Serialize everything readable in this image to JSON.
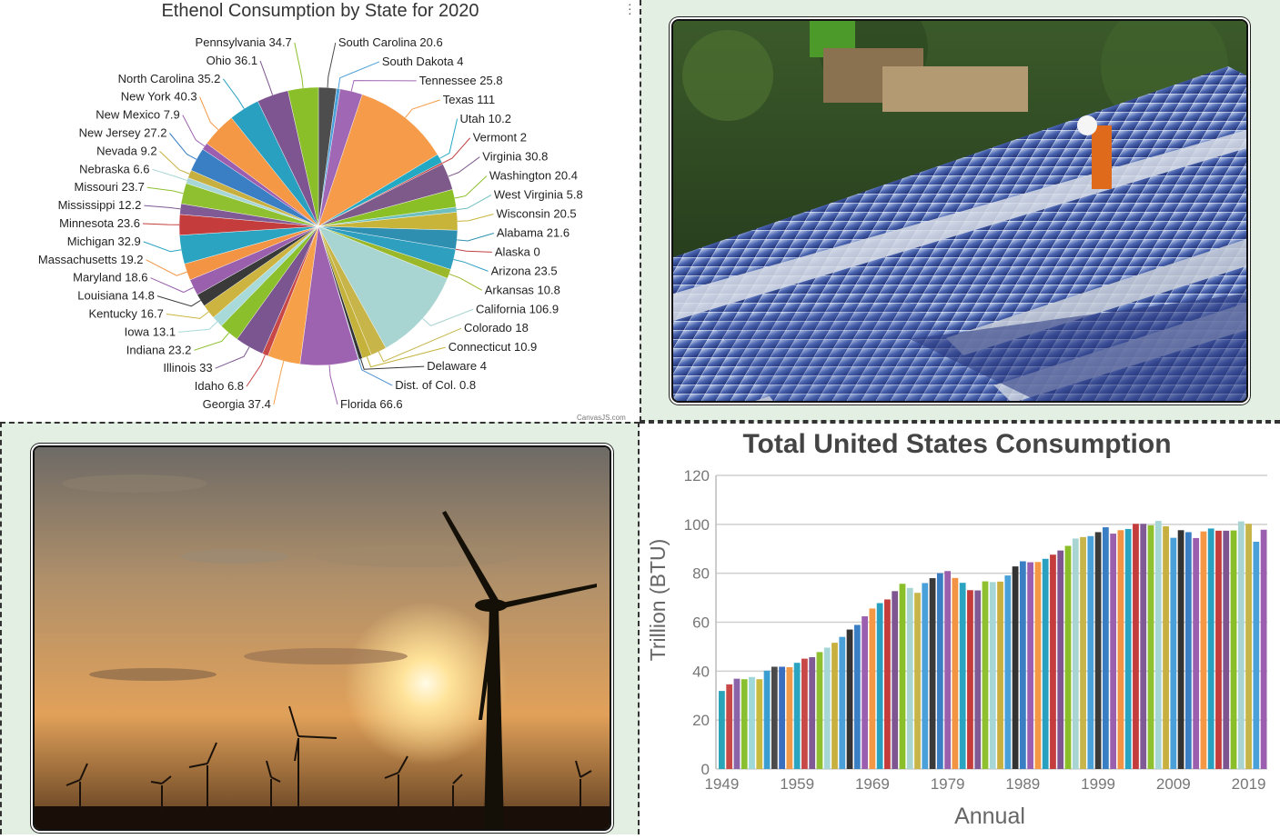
{
  "pie_chart": {
    "credit": "CanvasJS.com",
    "menu_icon": "vertical-dots-icon"
  },
  "bar_chart": {},
  "photos": {
    "solar": "solar-panel-installation-photo",
    "wind": "wind-turbines-sunset-photo"
  },
  "chart_data": [
    {
      "type": "pie",
      "title": "Ethenol Consumption by State for 2020",
      "slices": [
        {
          "label": "South Carolina",
          "value": 20.6,
          "color": "#4d4d4d"
        },
        {
          "label": "South Dakota",
          "value": 4,
          "color": "#4aa0d8"
        },
        {
          "label": "Tennessee",
          "value": 25.8,
          "color": "#a067b4"
        },
        {
          "label": "Texas",
          "value": 111,
          "color": "#f59b4a"
        },
        {
          "label": "Utah",
          "value": 10.2,
          "color": "#24a9c4"
        },
        {
          "label": "Vermont",
          "value": 2,
          "color": "#c04040"
        },
        {
          "label": "Virginia",
          "value": 30.8,
          "color": "#7d5a8a"
        },
        {
          "label": "Washington",
          "value": 20.4,
          "color": "#8bbf26"
        },
        {
          "label": "West Virginia",
          "value": 5.8,
          "color": "#6fbfbf"
        },
        {
          "label": "Wisconsin",
          "value": 20.5,
          "color": "#c8b438"
        },
        {
          "label": "Alabama",
          "value": 21.6,
          "color": "#2f8fb0"
        },
        {
          "label": "Alaska",
          "value": 0,
          "color": "#c04040"
        },
        {
          "label": "Arizona",
          "value": 23.5,
          "color": "#2f9fbf"
        },
        {
          "label": "Arkansas",
          "value": 10.8,
          "color": "#9bb72a"
        },
        {
          "label": "California",
          "value": 106.9,
          "color": "#a8d4d2"
        },
        {
          "label": "Colorado",
          "value": 18,
          "color": "#c7b54a"
        },
        {
          "label": "Connecticut",
          "value": 10.9,
          "color": "#c4b23a"
        },
        {
          "label": "Delaware",
          "value": 4,
          "color": "#333333"
        },
        {
          "label": "Dist. of Col.",
          "value": 0.8,
          "color": "#4a8fd0"
        },
        {
          "label": "Florida",
          "value": 66.6,
          "color": "#9e63b0"
        },
        {
          "label": "Georgia",
          "value": 37.4,
          "color": "#f6a04a"
        },
        {
          "label": "Idaho",
          "value": 6.8,
          "color": "#c84848"
        },
        {
          "label": "Illinois",
          "value": 33,
          "color": "#7a5590"
        },
        {
          "label": "Indiana",
          "value": 23.2,
          "color": "#8cbf2c"
        },
        {
          "label": "Iowa",
          "value": 13.1,
          "color": "#a8dada"
        },
        {
          "label": "Kentucky",
          "value": 16.7,
          "color": "#cdb440"
        },
        {
          "label": "Louisiana",
          "value": 14.8,
          "color": "#3a3a3a"
        },
        {
          "label": "Maryland",
          "value": 18.6,
          "color": "#9a60ae"
        },
        {
          "label": "Massachusetts",
          "value": 19.2,
          "color": "#f29444"
        },
        {
          "label": "Michigan",
          "value": 32.9,
          "color": "#2aa4c0"
        },
        {
          "label": "Minnesota",
          "value": 23.6,
          "color": "#c43c3c"
        },
        {
          "label": "Mississippi",
          "value": 12.2,
          "color": "#7f5a94"
        },
        {
          "label": "Missouri",
          "value": 23.7,
          "color": "#8fc030"
        },
        {
          "label": "Nebraska",
          "value": 6.6,
          "color": "#a6d6d6"
        },
        {
          "label": "Nevada",
          "value": 9.2,
          "color": "#c8b040"
        },
        {
          "label": "New Jersey",
          "value": 27.2,
          "color": "#3a7fc4"
        },
        {
          "label": "New Mexico",
          "value": 7.9,
          "color": "#9c5fb0"
        },
        {
          "label": "New York",
          "value": 40.3,
          "color": "#f49846"
        },
        {
          "label": "North Carolina",
          "value": 35.2,
          "color": "#2aa0c0"
        },
        {
          "label": "Ohio",
          "value": 36.1,
          "color": "#7e5590"
        },
        {
          "label": "Pennsylvania",
          "value": 34.7,
          "color": "#8bbf2a"
        }
      ]
    },
    {
      "type": "bar",
      "title": "Total United States Consumption",
      "xlabel": "Annual",
      "ylabel": "Trillion (BTU)",
      "ylim": [
        0,
        120
      ],
      "yticks": [
        0,
        20,
        40,
        60,
        80,
        100,
        120
      ],
      "xtick_labels": [
        "1949",
        "1959",
        "1969",
        "1979",
        "1989",
        "1999",
        "2009",
        "2019"
      ],
      "grid": true,
      "x": [
        1949,
        1950,
        1951,
        1952,
        1953,
        1954,
        1955,
        1956,
        1957,
        1958,
        1959,
        1960,
        1961,
        1962,
        1963,
        1964,
        1965,
        1966,
        1967,
        1968,
        1969,
        1970,
        1971,
        1972,
        1973,
        1974,
        1975,
        1976,
        1977,
        1978,
        1979,
        1980,
        1981,
        1982,
        1983,
        1984,
        1985,
        1986,
        1987,
        1988,
        1989,
        1990,
        1991,
        1992,
        1993,
        1994,
        1995,
        1996,
        1997,
        1998,
        1999,
        2000,
        2001,
        2002,
        2003,
        2004,
        2005,
        2006,
        2007,
        2008,
        2009,
        2010,
        2011,
        2012,
        2013,
        2014,
        2015,
        2016,
        2017,
        2018,
        2019,
        2020,
        2021
      ],
      "values": [
        31.9,
        34.6,
        36.9,
        36.7,
        37.6,
        36.7,
        40.2,
        41.8,
        41.8,
        41.6,
        43.4,
        45.1,
        45.7,
        47.8,
        49.6,
        51.6,
        54.0,
        57.0,
        58.9,
        62.4,
        65.6,
        67.8,
        69.3,
        72.7,
        75.7,
        74.0,
        72.0,
        76.0,
        78.0,
        80.0,
        80.9,
        78.1,
        76.1,
        73.1,
        73.0,
        76.7,
        76.4,
        76.6,
        79.1,
        82.8,
        84.9,
        84.5,
        84.6,
        85.9,
        87.6,
        89.3,
        91.2,
        94.2,
        94.8,
        95.2,
        96.8,
        98.8,
        96.2,
        97.6,
        98.1,
        100.2,
        100.2,
        99.6,
        101.4,
        99.2,
        94.5,
        97.6,
        96.8,
        94.4,
        97.1,
        98.3,
        97.4,
        97.4,
        97.5,
        101.2,
        100.2,
        92.9,
        97.8
      ],
      "colors": [
        "#2aa4b8",
        "#c84848",
        "#8a63a8",
        "#88c030",
        "#9fd8d8",
        "#c9ba40",
        "#3a9fd0",
        "#4a4a4a",
        "#3a6fbf",
        "#f29a48",
        "#2aa4c0",
        "#c84848",
        "#7f5a94",
        "#8fc030",
        "#a6d6d6",
        "#c8b040",
        "#4aa0d8",
        "#333333",
        "#3a7fc4",
        "#9c5fb0",
        "#f49846",
        "#2aa0c0",
        "#c43c3c",
        "#7e5590",
        "#8bbf2a",
        "#a8d4d2",
        "#c7b54a",
        "#4aa0d8",
        "#3a3a3a",
        "#3a7fc4",
        "#9a60ae",
        "#f29444",
        "#2aa4c0",
        "#c43c3c",
        "#7f5a94",
        "#8fc030",
        "#a6d6d6",
        "#c8b040",
        "#4aa0d8",
        "#333333",
        "#3a7fc4",
        "#9c5fb0",
        "#f49846",
        "#2aa0c0",
        "#c43c3c",
        "#7e5590",
        "#8bbf2a",
        "#a8d4d2",
        "#c7b54a",
        "#4aa0d8",
        "#3a3a3a",
        "#3a7fc4",
        "#9a60ae",
        "#f29444",
        "#2aa4c0",
        "#c43c3c",
        "#7f5a94",
        "#8fc030",
        "#a6d6d6",
        "#c8b040",
        "#4aa0d8",
        "#333333",
        "#3a7fc4",
        "#9c5fb0",
        "#f49846",
        "#2aa0c0",
        "#c43c3c",
        "#7e5590",
        "#8bbf2a",
        "#a8d4d2",
        "#c7b54a",
        "#4aa0d8",
        "#9c5fb0"
      ]
    }
  ]
}
